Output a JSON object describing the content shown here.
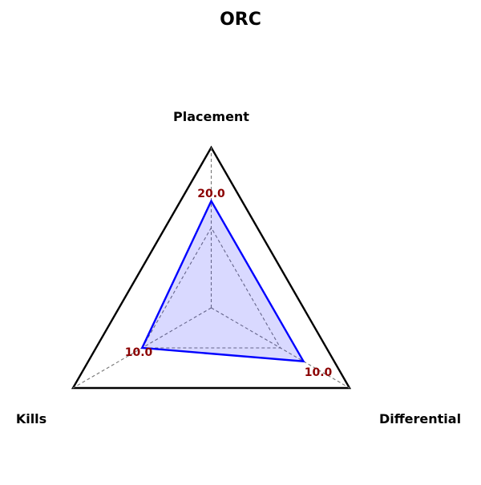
{
  "chart_data": {
    "type": "radar",
    "title": "ORC",
    "axes": [
      "Placement",
      "Kills",
      "Differential"
    ],
    "axis_max": [
      30,
      20,
      15
    ],
    "values": [
      20.0,
      10.0,
      10.0
    ],
    "value_labels": [
      "20.0",
      "10.0",
      "10.0"
    ],
    "grid": true,
    "legend": false
  },
  "colors": {
    "outline": "#000000",
    "series_line": "#0000ff",
    "series_fill": "#0000ff",
    "series_fill_opacity": 0.15,
    "grid": "#777777",
    "value_label": "#8b0000"
  }
}
